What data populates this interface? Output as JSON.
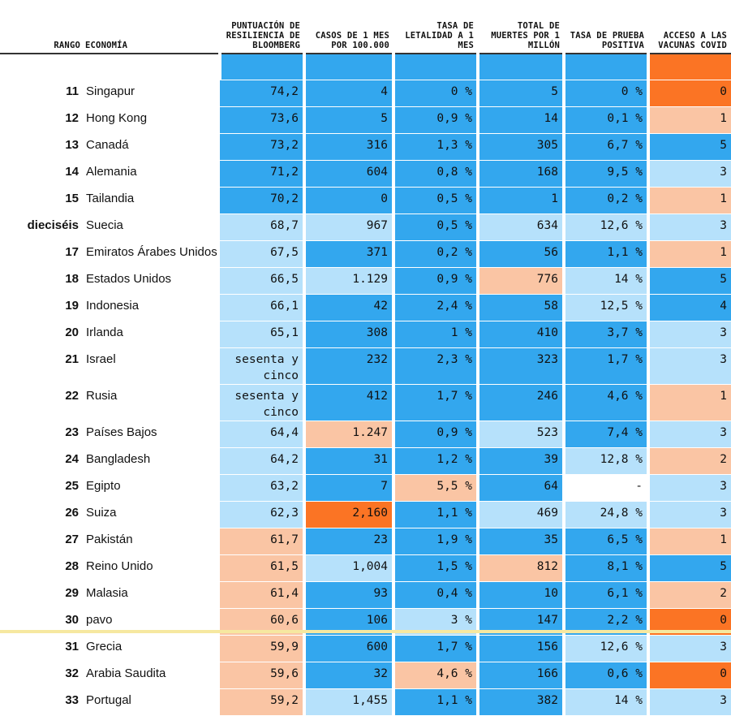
{
  "headers": {
    "rank": "RANGO",
    "economy": "ECONOMÍA",
    "score": "PUNTUACIÓN DE RESILIENCIA DE BLOOMBERG",
    "cases": "CASOS DE 1 MES POR 100.000",
    "fatality": "TASA DE LETALIDAD A 1 MES",
    "deaths": "TOTAL DE MUERTES POR 1 MILLÓN",
    "positivity": "TASA DE PRUEBA POSITIVA",
    "vaccines": "ACCESO A LAS VACUNAS COVID"
  },
  "colors": {
    "blue": "#33a7ee",
    "light_blue": "#b6e1fb",
    "peach": "#fac5a4",
    "orange": "#fb7424"
  },
  "rows": [
    {
      "rank": "11",
      "economy": "Singapur",
      "score": "74,2",
      "cases": "4",
      "fatality": "0 %",
      "deaths": "5",
      "positivity": "0 %",
      "vaccines": "0",
      "colors": [
        "blue",
        "blue",
        "blue",
        "blue",
        "blue",
        "orange"
      ]
    },
    {
      "rank": "12",
      "economy": "Hong Kong",
      "score": "73,6",
      "cases": "5",
      "fatality": "0,9 %",
      "deaths": "14",
      "positivity": "0,1 %",
      "vaccines": "1",
      "colors": [
        "blue",
        "blue",
        "blue",
        "blue",
        "blue",
        "peach"
      ]
    },
    {
      "rank": "13",
      "economy": "Canadá",
      "score": "73,2",
      "cases": "316",
      "fatality": "1,3 %",
      "deaths": "305",
      "positivity": "6,7 %",
      "vaccines": "5",
      "colors": [
        "blue",
        "blue",
        "blue",
        "blue",
        "blue",
        "blue"
      ]
    },
    {
      "rank": "14",
      "economy": "Alemania",
      "score": "71,2",
      "cases": "604",
      "fatality": "0,8 %",
      "deaths": "168",
      "positivity": "9,5 %",
      "vaccines": "3",
      "colors": [
        "blue",
        "blue",
        "blue",
        "blue",
        "blue",
        "light_blue"
      ]
    },
    {
      "rank": "15",
      "economy": "Tailandia",
      "score": "70,2",
      "cases": "0",
      "fatality": "0,5 %",
      "deaths": "1",
      "positivity": "0,2 %",
      "vaccines": "1",
      "colors": [
        "blue",
        "blue",
        "blue",
        "blue",
        "blue",
        "peach"
      ]
    },
    {
      "rank": "dieciséis",
      "economy": "Suecia",
      "score": "68,7",
      "cases": "967",
      "fatality": "0,5 %",
      "deaths": "634",
      "positivity": "12,6 %",
      "vaccines": "3",
      "colors": [
        "light_blue",
        "light_blue",
        "blue",
        "light_blue",
        "light_blue",
        "light_blue"
      ]
    },
    {
      "rank": "17",
      "economy": "Emiratos Árabes Unidos",
      "score": "67,5",
      "cases": "371",
      "fatality": "0,2 %",
      "deaths": "56",
      "positivity": "1,1 %",
      "vaccines": "1",
      "colors": [
        "light_blue",
        "blue",
        "blue",
        "blue",
        "blue",
        "peach"
      ]
    },
    {
      "rank": "18",
      "economy": "Estados Unidos",
      "score": "66,5",
      "cases": "1.129",
      "fatality": "0,9 %",
      "deaths": "776",
      "positivity": "14 %",
      "vaccines": "5",
      "colors": [
        "light_blue",
        "light_blue",
        "blue",
        "peach",
        "light_blue",
        "blue"
      ]
    },
    {
      "rank": "19",
      "economy": "Indonesia",
      "score": "66,1",
      "cases": "42",
      "fatality": "2,4 %",
      "deaths": "58",
      "positivity": "12,5 %",
      "vaccines": "4",
      "colors": [
        "light_blue",
        "blue",
        "blue",
        "blue",
        "light_blue",
        "blue"
      ]
    },
    {
      "rank": "20",
      "economy": "Irlanda",
      "score": "65,1",
      "cases": "308",
      "fatality": "1 %",
      "deaths": "410",
      "positivity": "3,7 %",
      "vaccines": "3",
      "colors": [
        "light_blue",
        "blue",
        "blue",
        "blue",
        "blue",
        "light_blue"
      ]
    },
    {
      "rank": "21",
      "economy": "Israel",
      "score": "sesenta y cinco",
      "cases": "232",
      "fatality": "2,3 %",
      "deaths": "323",
      "positivity": "1,7 %",
      "vaccines": "3",
      "colors": [
        "light_blue",
        "blue",
        "blue",
        "blue",
        "blue",
        "light_blue"
      ]
    },
    {
      "rank": "22",
      "economy": "Rusia",
      "score": "sesenta y cinco",
      "cases": "412",
      "fatality": "1,7 %",
      "deaths": "246",
      "positivity": "4,6 %",
      "vaccines": "1",
      "colors": [
        "light_blue",
        "blue",
        "blue",
        "blue",
        "blue",
        "peach"
      ]
    },
    {
      "rank": "23",
      "economy": "Países Bajos",
      "score": "64,4",
      "cases": "1.247",
      "fatality": "0,9 %",
      "deaths": "523",
      "positivity": "7,4 %",
      "vaccines": "3",
      "colors": [
        "light_blue",
        "peach",
        "blue",
        "light_blue",
        "blue",
        "light_blue"
      ]
    },
    {
      "rank": "24",
      "economy": "Bangladesh",
      "score": "64,2",
      "cases": "31",
      "fatality": "1,2 %",
      "deaths": "39",
      "positivity": "12,8 %",
      "vaccines": "2",
      "colors": [
        "light_blue",
        "blue",
        "blue",
        "blue",
        "light_blue",
        "peach"
      ]
    },
    {
      "rank": "25",
      "economy": "Egipto",
      "score": "63,2",
      "cases": "7",
      "fatality": "5,5 %",
      "deaths": "64",
      "positivity": "-",
      "vaccines": "3",
      "colors": [
        "light_blue",
        "blue",
        "peach",
        "blue",
        "white",
        "light_blue"
      ]
    },
    {
      "rank": "26",
      "economy": "Suiza",
      "score": "62,3",
      "cases": "2,160",
      "fatality": "1,1 %",
      "deaths": "469",
      "positivity": "24,8 %",
      "vaccines": "3",
      "colors": [
        "light_blue",
        "orange",
        "blue",
        "light_blue",
        "light_blue",
        "light_blue"
      ]
    },
    {
      "rank": "27",
      "economy": "Pakistán",
      "score": "61,7",
      "cases": "23",
      "fatality": "1,9 %",
      "deaths": "35",
      "positivity": "6,5 %",
      "vaccines": "1",
      "colors": [
        "peach",
        "blue",
        "blue",
        "blue",
        "blue",
        "peach"
      ]
    },
    {
      "rank": "28",
      "economy": "Reino Unido",
      "score": "61,5",
      "cases": "1,004",
      "fatality": "1,5 %",
      "deaths": "812",
      "positivity": "8,1 %",
      "vaccines": "5",
      "colors": [
        "peach",
        "light_blue",
        "blue",
        "peach",
        "blue",
        "blue"
      ]
    },
    {
      "rank": "29",
      "economy": "Malasia",
      "score": "61,4",
      "cases": "93",
      "fatality": "0,4 %",
      "deaths": "10",
      "positivity": "6,1 %",
      "vaccines": "2",
      "colors": [
        "peach",
        "blue",
        "blue",
        "blue",
        "blue",
        "peach"
      ]
    },
    {
      "rank": "30",
      "economy": "pavo",
      "score": "60,6",
      "cases": "106",
      "fatality": "3 %",
      "deaths": "147",
      "positivity": "2,2 %",
      "vaccines": "0",
      "colors": [
        "peach",
        "blue",
        "light_blue",
        "blue",
        "blue",
        "orange"
      ]
    },
    {
      "rank": "31",
      "economy": "Grecia",
      "score": "59,9",
      "cases": "600",
      "fatality": "1,7 %",
      "deaths": "156",
      "positivity": "12,6 %",
      "vaccines": "3",
      "colors": [
        "peach",
        "blue",
        "blue",
        "blue",
        "light_blue",
        "light_blue"
      ]
    },
    {
      "rank": "32",
      "economy": "Arabia Saudita",
      "score": "59,6",
      "cases": "32",
      "fatality": "4,6 %",
      "deaths": "166",
      "positivity": "0,6 %",
      "vaccines": "0",
      "colors": [
        "peach",
        "blue",
        "peach",
        "blue",
        "blue",
        "orange"
      ]
    },
    {
      "rank": "33",
      "economy": "Portugal",
      "score": "59,2",
      "cases": "1,455",
      "fatality": "1,1 %",
      "deaths": "382",
      "positivity": "14 %",
      "vaccines": "3",
      "colors": [
        "peach",
        "light_blue",
        "blue",
        "blue",
        "light_blue",
        "light_blue"
      ]
    }
  ]
}
